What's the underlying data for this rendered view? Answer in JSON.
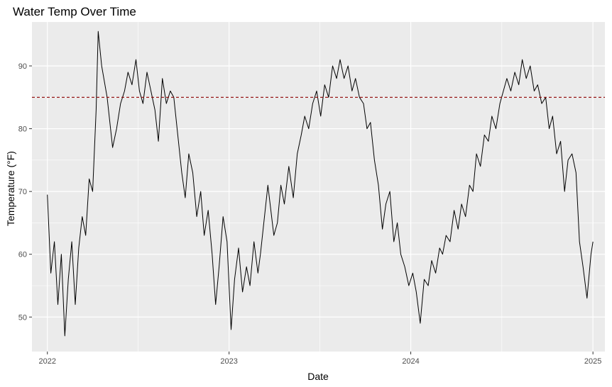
{
  "chart_data": {
    "type": "line",
    "title": "Water Temp Over Time",
    "xlabel": "Date",
    "ylabel": "Temperature (°F)",
    "x_tick_labels": [
      "2022",
      "2023",
      "2024",
      "2025"
    ],
    "x_tick_values": [
      "2022-01-01",
      "2023-01-01",
      "2024-01-01",
      "2025-01-01"
    ],
    "y_tick_values": [
      50,
      60,
      70,
      80,
      90
    ],
    "xlim": [
      "2021-12-01",
      "2025-01-25"
    ],
    "ylim": [
      44.5,
      97
    ],
    "grid": true,
    "background": "#ebebeb",
    "gridline_color": "#ffffff",
    "series": [
      {
        "color": "#000000",
        "points": [
          [
            "2022-01-01",
            69.5
          ],
          [
            "2022-01-08",
            57
          ],
          [
            "2022-01-15",
            62
          ],
          [
            "2022-01-22",
            52
          ],
          [
            "2022-01-29",
            60
          ],
          [
            "2022-02-05",
            47
          ],
          [
            "2022-02-12",
            56
          ],
          [
            "2022-02-19",
            62
          ],
          [
            "2022-02-26",
            52
          ],
          [
            "2022-03-05",
            61
          ],
          [
            "2022-03-12",
            66
          ],
          [
            "2022-03-19",
            63
          ],
          [
            "2022-03-26",
            72
          ],
          [
            "2022-04-02",
            70
          ],
          [
            "2022-04-09",
            83
          ],
          [
            "2022-04-13",
            95.5
          ],
          [
            "2022-04-20",
            90
          ],
          [
            "2022-05-01",
            85
          ],
          [
            "2022-05-12",
            77
          ],
          [
            "2022-05-20",
            80
          ],
          [
            "2022-05-28",
            84
          ],
          [
            "2022-06-05",
            86
          ],
          [
            "2022-06-12",
            89
          ],
          [
            "2022-06-20",
            87
          ],
          [
            "2022-06-28",
            91
          ],
          [
            "2022-07-05",
            86
          ],
          [
            "2022-07-12",
            84
          ],
          [
            "2022-07-20",
            89
          ],
          [
            "2022-07-28",
            86
          ],
          [
            "2022-08-05",
            83
          ],
          [
            "2022-08-12",
            78
          ],
          [
            "2022-08-20",
            88
          ],
          [
            "2022-08-28",
            84
          ],
          [
            "2022-09-05",
            86
          ],
          [
            "2022-09-12",
            85
          ],
          [
            "2022-09-20",
            79
          ],
          [
            "2022-09-28",
            73
          ],
          [
            "2022-10-05",
            69
          ],
          [
            "2022-10-12",
            76
          ],
          [
            "2022-10-20",
            73
          ],
          [
            "2022-10-28",
            66
          ],
          [
            "2022-11-05",
            70
          ],
          [
            "2022-11-12",
            63
          ],
          [
            "2022-11-20",
            67
          ],
          [
            "2022-11-28",
            60
          ],
          [
            "2022-12-05",
            52
          ],
          [
            "2022-12-12",
            58
          ],
          [
            "2022-12-20",
            66
          ],
          [
            "2022-12-28",
            62
          ],
          [
            "2023-01-05",
            48
          ],
          [
            "2023-01-12",
            56
          ],
          [
            "2023-01-20",
            61
          ],
          [
            "2023-01-28",
            54
          ],
          [
            "2023-02-05",
            58
          ],
          [
            "2023-02-12",
            55
          ],
          [
            "2023-02-20",
            62
          ],
          [
            "2023-02-28",
            57
          ],
          [
            "2023-03-05",
            60
          ],
          [
            "2023-03-20",
            71
          ],
          [
            "2023-04-01",
            63
          ],
          [
            "2023-04-08",
            65
          ],
          [
            "2023-04-15",
            71
          ],
          [
            "2023-04-22",
            68
          ],
          [
            "2023-05-01",
            74
          ],
          [
            "2023-05-10",
            69
          ],
          [
            "2023-05-18",
            76
          ],
          [
            "2023-05-26",
            79
          ],
          [
            "2023-06-02",
            82
          ],
          [
            "2023-06-10",
            80
          ],
          [
            "2023-06-18",
            84
          ],
          [
            "2023-06-26",
            86
          ],
          [
            "2023-07-04",
            82
          ],
          [
            "2023-07-12",
            87
          ],
          [
            "2023-07-20",
            85
          ],
          [
            "2023-07-28",
            90
          ],
          [
            "2023-08-05",
            88
          ],
          [
            "2023-08-12",
            91
          ],
          [
            "2023-08-20",
            88
          ],
          [
            "2023-08-28",
            90
          ],
          [
            "2023-09-05",
            86
          ],
          [
            "2023-09-12",
            88
          ],
          [
            "2023-09-20",
            85
          ],
          [
            "2023-09-28",
            84
          ],
          [
            "2023-10-05",
            80
          ],
          [
            "2023-10-12",
            81
          ],
          [
            "2023-10-20",
            75
          ],
          [
            "2023-10-28",
            71
          ],
          [
            "2023-11-05",
            64
          ],
          [
            "2023-11-12",
            68
          ],
          [
            "2023-11-20",
            70
          ],
          [
            "2023-11-28",
            62
          ],
          [
            "2023-12-05",
            65
          ],
          [
            "2023-12-12",
            60
          ],
          [
            "2023-12-20",
            58
          ],
          [
            "2023-12-28",
            55
          ],
          [
            "2024-01-05",
            57
          ],
          [
            "2024-01-12",
            54
          ],
          [
            "2024-01-20",
            49
          ],
          [
            "2024-01-28",
            56
          ],
          [
            "2024-02-05",
            55
          ],
          [
            "2024-02-12",
            59
          ],
          [
            "2024-02-20",
            57
          ],
          [
            "2024-02-28",
            61
          ],
          [
            "2024-03-05",
            60
          ],
          [
            "2024-03-12",
            63
          ],
          [
            "2024-03-20",
            62
          ],
          [
            "2024-03-28",
            67
          ],
          [
            "2024-04-05",
            64
          ],
          [
            "2024-04-12",
            68
          ],
          [
            "2024-04-20",
            66
          ],
          [
            "2024-04-28",
            71
          ],
          [
            "2024-05-05",
            70
          ],
          [
            "2024-05-12",
            76
          ],
          [
            "2024-05-20",
            74
          ],
          [
            "2024-05-28",
            79
          ],
          [
            "2024-06-05",
            78
          ],
          [
            "2024-06-12",
            82
          ],
          [
            "2024-06-20",
            80
          ],
          [
            "2024-06-28",
            84
          ],
          [
            "2024-07-05",
            86
          ],
          [
            "2024-07-12",
            88
          ],
          [
            "2024-07-20",
            86
          ],
          [
            "2024-07-28",
            89
          ],
          [
            "2024-08-05",
            87
          ],
          [
            "2024-08-12",
            91
          ],
          [
            "2024-08-20",
            88
          ],
          [
            "2024-08-28",
            90
          ],
          [
            "2024-09-05",
            86
          ],
          [
            "2024-09-12",
            87
          ],
          [
            "2024-09-20",
            84
          ],
          [
            "2024-09-28",
            85
          ],
          [
            "2024-10-05",
            80
          ],
          [
            "2024-10-12",
            82
          ],
          [
            "2024-10-20",
            76
          ],
          [
            "2024-10-28",
            78
          ],
          [
            "2024-11-05",
            70
          ],
          [
            "2024-11-12",
            75
          ],
          [
            "2024-11-20",
            76
          ],
          [
            "2024-11-28",
            73
          ],
          [
            "2024-12-05",
            62
          ],
          [
            "2024-12-12",
            58
          ],
          [
            "2024-12-20",
            53
          ],
          [
            "2024-12-28",
            60
          ],
          [
            "2025-01-01",
            62
          ]
        ]
      }
    ],
    "reference_lines": [
      {
        "y": 85,
        "color": "#8b0000",
        "style": "dashed"
      }
    ]
  }
}
